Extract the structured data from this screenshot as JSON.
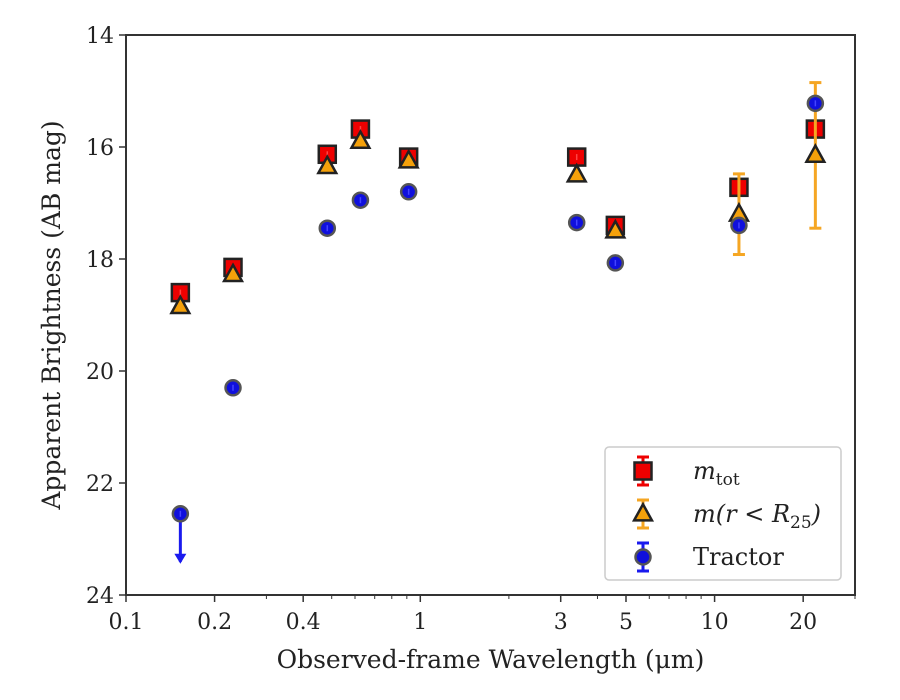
{
  "chart_data": {
    "type": "scatter",
    "xlabel": "Observed-frame Wavelength (μm)",
    "ylabel": "Apparent Brightness (AB mag)",
    "x_scale": "log",
    "xlim": [
      0.1,
      30
    ],
    "ylim": [
      24,
      14
    ],
    "y_inverted": true,
    "grid": false,
    "legend_position": "lower-right",
    "x_ticks": [
      {
        "value": 0.1,
        "label": "0.1"
      },
      {
        "value": 0.2,
        "label": "0.2"
      },
      {
        "value": 0.4,
        "label": "0.4"
      },
      {
        "value": 1,
        "label": "1"
      },
      {
        "value": 3,
        "label": "3"
      },
      {
        "value": 5,
        "label": "5"
      },
      {
        "value": 10,
        "label": "10"
      },
      {
        "value": 20,
        "label": "20"
      }
    ],
    "y_ticks": [
      {
        "value": 14,
        "label": "14"
      },
      {
        "value": 16,
        "label": "16"
      },
      {
        "value": 18,
        "label": "18"
      },
      {
        "value": 20,
        "label": "20"
      },
      {
        "value": 22,
        "label": "22"
      },
      {
        "value": 24,
        "label": "24"
      }
    ],
    "series": [
      {
        "name": "m_tot",
        "legend_label": "m",
        "legend_sub": "tot",
        "marker": "square",
        "color": "#ee0000",
        "edge": "#222222",
        "errcolor": "#ee0000",
        "points": [
          {
            "x": 0.153,
            "y": 18.6
          },
          {
            "x": 0.231,
            "y": 18.15
          },
          {
            "x": 0.483,
            "y": 16.13
          },
          {
            "x": 0.626,
            "y": 15.68
          },
          {
            "x": 0.913,
            "y": 16.18
          },
          {
            "x": 3.4,
            "y": 16.18
          },
          {
            "x": 4.6,
            "y": 17.4
          },
          {
            "x": 12.1,
            "y": 16.72
          },
          {
            "x": 22.0,
            "y": 15.68
          }
        ]
      },
      {
        "name": "m(r < R25)",
        "legend_label": "m(r < R",
        "legend_sub": "25",
        "legend_close": ")",
        "marker": "triangle",
        "color": "#f5a10a",
        "edge": "#222222",
        "errcolor": "#f5a623",
        "points": [
          {
            "x": 0.153,
            "y": 18.85
          },
          {
            "x": 0.231,
            "y": 18.28
          },
          {
            "x": 0.483,
            "y": 16.35
          },
          {
            "x": 0.626,
            "y": 15.9
          },
          {
            "x": 0.913,
            "y": 16.25
          },
          {
            "x": 3.4,
            "y": 16.5
          },
          {
            "x": 4.6,
            "y": 17.5
          },
          {
            "x": 12.1,
            "y": 17.2,
            "err": 0.72
          },
          {
            "x": 22.0,
            "y": 16.15,
            "err": 1.3
          }
        ]
      },
      {
        "name": "Tractor",
        "legend_label": "Tractor",
        "marker": "circle",
        "color": "#1010dd",
        "edge": "#555555",
        "errcolor": "#1a1aee",
        "points": [
          {
            "x": 0.153,
            "y": 22.55,
            "upper_limit": true
          },
          {
            "x": 0.231,
            "y": 20.3
          },
          {
            "x": 0.483,
            "y": 17.45
          },
          {
            "x": 0.626,
            "y": 16.95
          },
          {
            "x": 0.913,
            "y": 16.8
          },
          {
            "x": 3.4,
            "y": 17.35
          },
          {
            "x": 4.6,
            "y": 18.07
          },
          {
            "x": 12.1,
            "y": 17.4
          },
          {
            "x": 22.0,
            "y": 15.22
          }
        ]
      }
    ]
  }
}
